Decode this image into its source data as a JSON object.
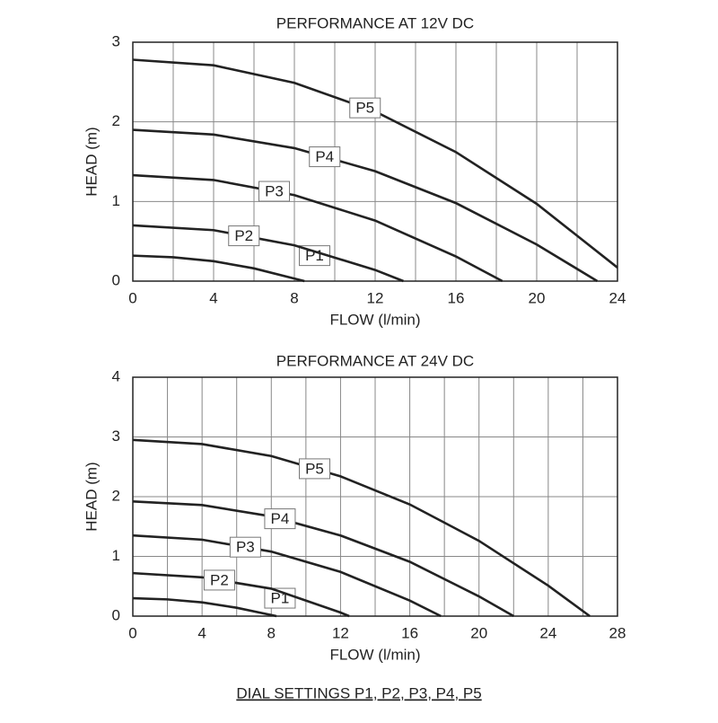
{
  "chart_data": [
    {
      "type": "line",
      "title": "PERFORMANCE AT 12V DC",
      "x_label": "FLOW (l/min)",
      "y_label": "HEAD (m)",
      "xlim": [
        0,
        24
      ],
      "xticks": [
        0,
        4,
        8,
        12,
        16,
        20,
        24
      ],
      "xminorticks": [
        2,
        6,
        10,
        14,
        18,
        22
      ],
      "ylim": [
        0,
        3
      ],
      "yticks": [
        0,
        1,
        2,
        3
      ],
      "grid": true,
      "color": "#222222",
      "series": [
        {
          "name": "P1",
          "x": [
            0,
            2,
            4,
            6,
            8.5
          ],
          "values": [
            0.32,
            0.3,
            0.25,
            0.16,
            0
          ]
        },
        {
          "name": "P2",
          "x": [
            0,
            4,
            8,
            12,
            13.4
          ],
          "values": [
            0.7,
            0.64,
            0.45,
            0.14,
            0
          ]
        },
        {
          "name": "P3",
          "x": [
            0,
            4,
            8,
            12,
            16,
            18.3
          ],
          "values": [
            1.33,
            1.27,
            1.08,
            0.76,
            0.31,
            0
          ]
        },
        {
          "name": "P4",
          "x": [
            0,
            4,
            8,
            12,
            16,
            20,
            23
          ],
          "values": [
            1.9,
            1.84,
            1.67,
            1.38,
            0.98,
            0.46,
            0
          ]
        },
        {
          "name": "P5",
          "x": [
            0,
            4,
            8,
            12,
            16,
            20,
            24
          ],
          "values": [
            2.78,
            2.71,
            2.49,
            2.13,
            1.62,
            0.97,
            0.17
          ]
        }
      ]
    },
    {
      "type": "line",
      "title": "PERFORMANCE AT 24V DC",
      "x_label": "FLOW (l/min)",
      "y_label": "HEAD (m)",
      "xlim": [
        0,
        28
      ],
      "xticks": [
        0,
        4,
        8,
        12,
        16,
        20,
        24,
        28
      ],
      "xminorticks": [
        2,
        6,
        10,
        14,
        18,
        22,
        26
      ],
      "ylim": [
        0,
        4
      ],
      "yticks": [
        0,
        1,
        2,
        3,
        4
      ],
      "grid": true,
      "color": "#222222",
      "series": [
        {
          "name": "P1",
          "x": [
            0,
            2,
            4,
            6,
            8.3
          ],
          "values": [
            0.3,
            0.28,
            0.23,
            0.14,
            0
          ]
        },
        {
          "name": "P2",
          "x": [
            0,
            4,
            8,
            12,
            12.5
          ],
          "values": [
            0.72,
            0.65,
            0.46,
            0.06,
            0
          ]
        },
        {
          "name": "P3",
          "x": [
            0,
            4,
            8,
            12,
            16,
            17.8
          ],
          "values": [
            1.35,
            1.28,
            1.08,
            0.74,
            0.26,
            0
          ]
        },
        {
          "name": "P4",
          "x": [
            0,
            4,
            8,
            12,
            16,
            20,
            22
          ],
          "values": [
            1.92,
            1.86,
            1.67,
            1.35,
            0.91,
            0.33,
            0
          ]
        },
        {
          "name": "P5",
          "x": [
            0,
            4,
            8,
            12,
            16,
            20,
            24,
            26.4
          ],
          "values": [
            2.95,
            2.88,
            2.68,
            2.34,
            1.87,
            1.26,
            0.51,
            0
          ]
        }
      ]
    }
  ],
  "caption": "DIAL SETTINGS P1, P2, P3, P4, P5"
}
